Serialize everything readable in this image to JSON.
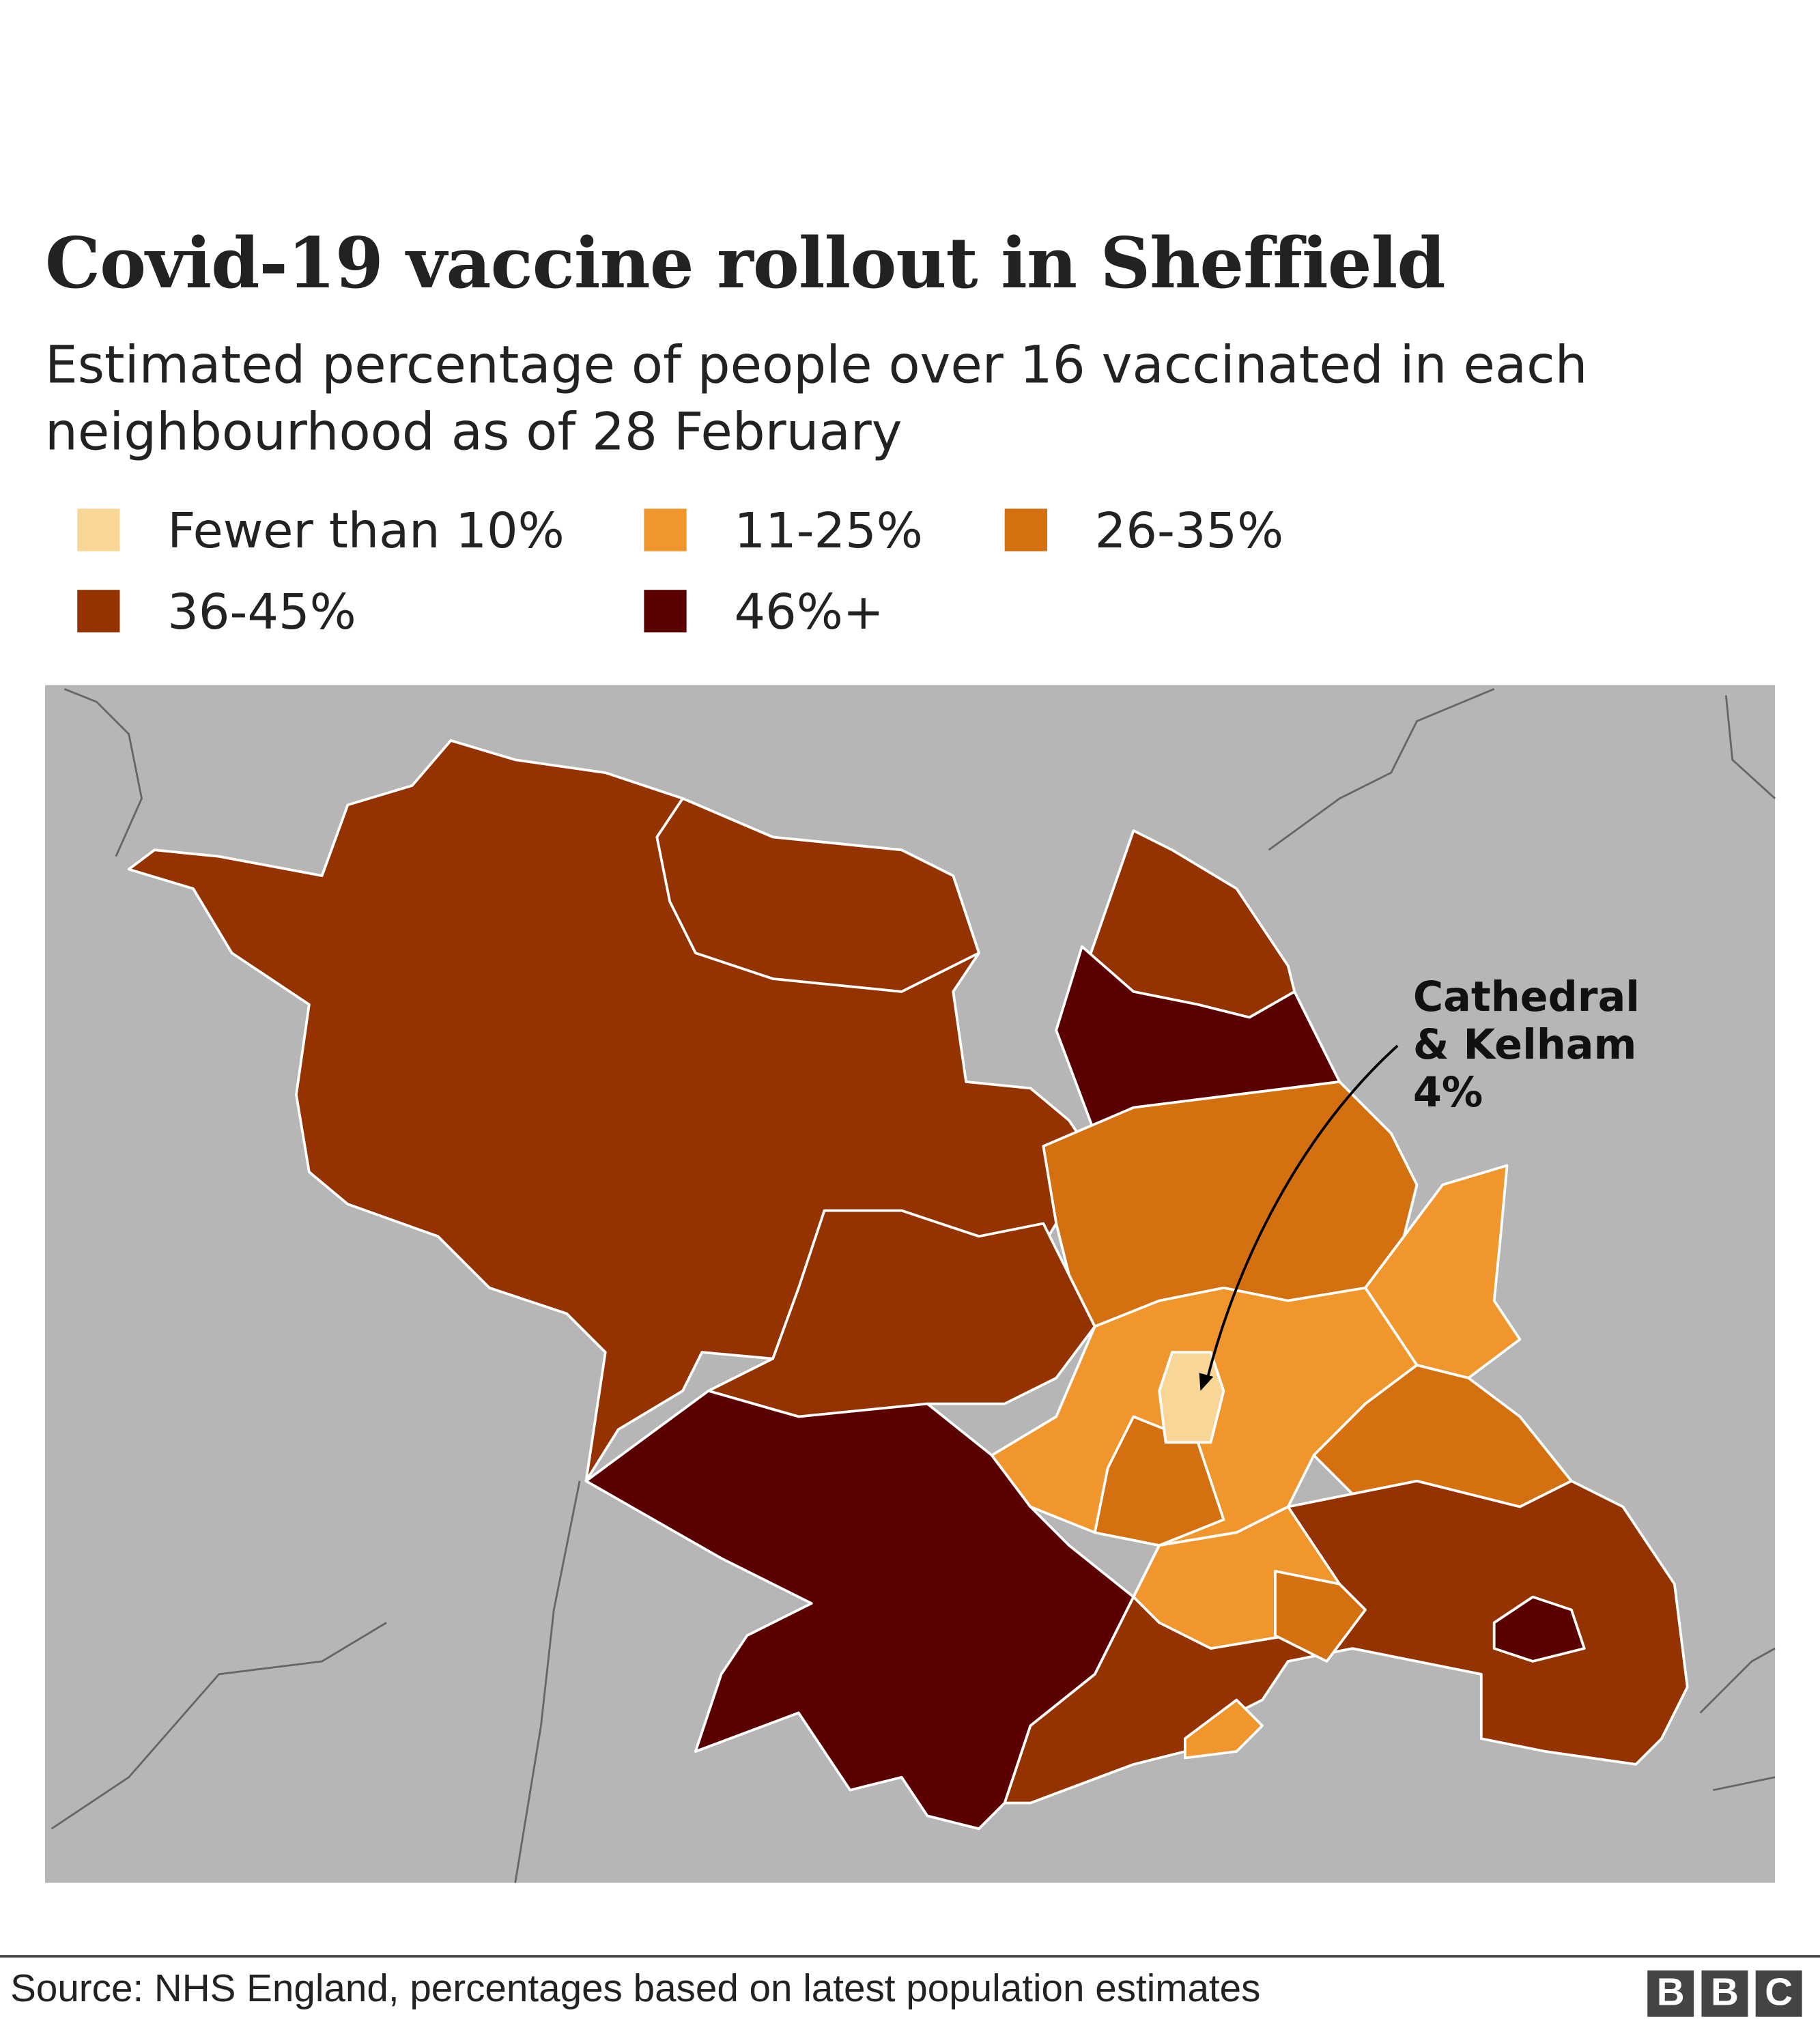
{
  "header": {
    "title": "Covid-19 vaccine rollout in Sheffield",
    "subtitle": "Estimated percentage of people over 16 vaccinated in each neighbourhood as of 28 February"
  },
  "legend": {
    "items": [
      {
        "label": "Fewer than 10%",
        "color": "#f9d596"
      },
      {
        "label": "11-25%",
        "color": "#f0962c"
      },
      {
        "label": "26-35%",
        "color": "#d4700f"
      },
      {
        "label": "36-45%",
        "color": "#943200"
      },
      {
        "label": "46%+",
        "color": "#5a0000"
      }
    ]
  },
  "annotation": {
    "lines": [
      "Cathedral",
      "& Kelham",
      "4%"
    ]
  },
  "footer": {
    "source": "Source: NHS England, percentages based on latest population estimates",
    "logo": [
      "B",
      "B",
      "C"
    ]
  }
}
